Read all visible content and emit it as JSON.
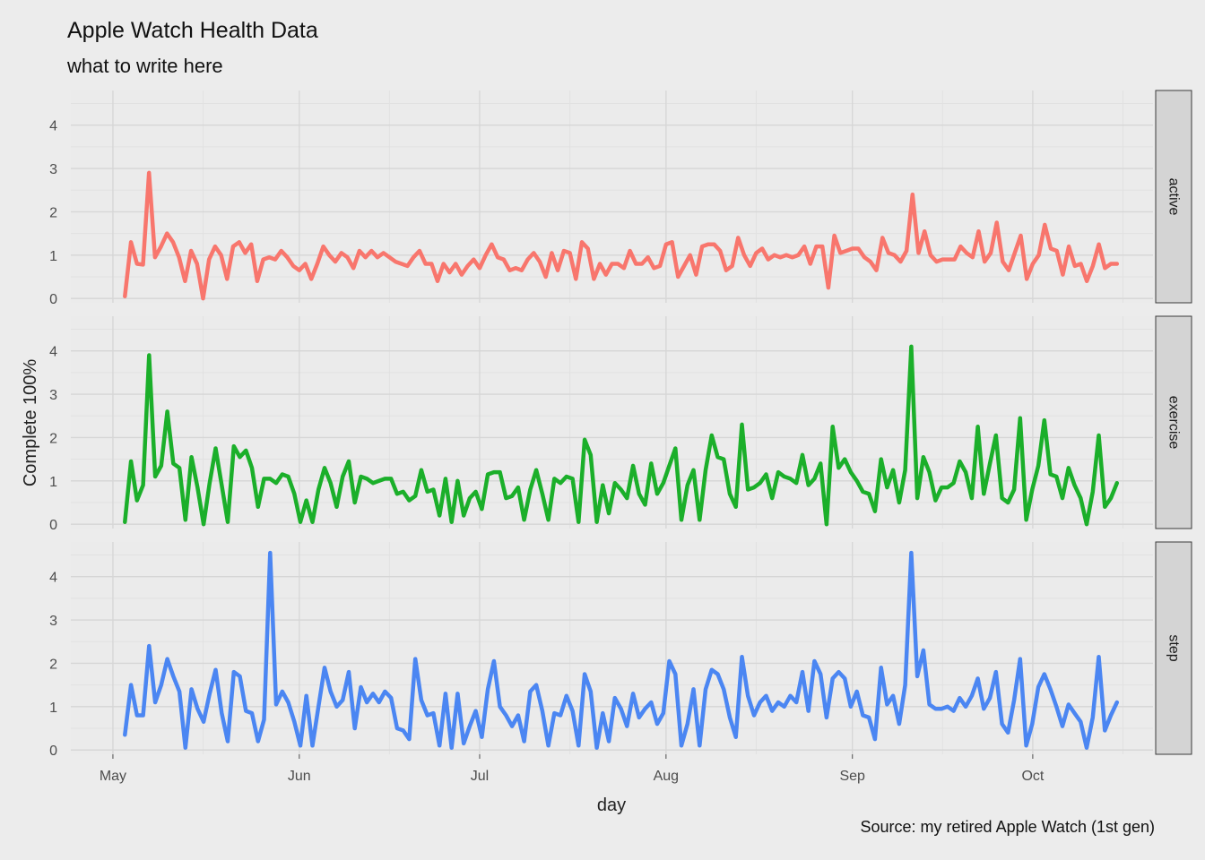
{
  "chart_data": {
    "type": "line",
    "title": "Apple Watch Health Data",
    "subtitle": "what to write here",
    "caption": "Source: my retired Apple Watch (1st gen)",
    "xlabel": "day",
    "ylabel": "Complete 100%",
    "x_ticks": [
      {
        "date": "2016-05-01",
        "label": "May"
      },
      {
        "date": "2016-06-01",
        "label": "Jun"
      },
      {
        "date": "2016-07-01",
        "label": "Jul"
      },
      {
        "date": "2016-08-01",
        "label": "Aug"
      },
      {
        "date": "2016-09-01",
        "label": "Sep"
      },
      {
        "date": "2016-10-01",
        "label": "Oct"
      }
    ],
    "xlim": [
      "2016-04-24",
      "2016-10-21"
    ],
    "ylim": [
      -0.1,
      4.8
    ],
    "y_ticks": [
      0,
      1,
      2,
      3,
      4
    ],
    "x_start": "2016-05-03",
    "x_end": "2016-10-15",
    "grid": true,
    "legend": "none",
    "series": [
      {
        "name": "active",
        "color": "#F8766D",
        "values": [
          0.05,
          1.3,
          0.8,
          0.78,
          2.9,
          0.95,
          1.2,
          1.5,
          1.3,
          0.95,
          0.4,
          1.1,
          0.8,
          0.0,
          0.9,
          1.2,
          1.0,
          0.45,
          1.2,
          1.3,
          1.05,
          1.25,
          0.4,
          0.9,
          0.95,
          0.9,
          1.1,
          0.95,
          0.75,
          0.65,
          0.8,
          0.45,
          0.8,
          1.2,
          1.0,
          0.85,
          1.05,
          0.95,
          0.7,
          1.1,
          0.95,
          1.1,
          0.95,
          1.05,
          0.95,
          0.85,
          0.8,
          0.75,
          0.95,
          1.1,
          0.8,
          0.8,
          0.4,
          0.8,
          0.6,
          0.8,
          0.55,
          0.75,
          0.9,
          0.7,
          1.0,
          1.25,
          0.95,
          0.9,
          0.65,
          0.7,
          0.65,
          0.9,
          1.05,
          0.85,
          0.5,
          1.05,
          0.65,
          1.1,
          1.05,
          0.45,
          1.3,
          1.15,
          0.45,
          0.8,
          0.55,
          0.8,
          0.8,
          0.7,
          1.1,
          0.8,
          0.8,
          0.95,
          0.7,
          0.75,
          1.25,
          1.3,
          0.5,
          0.75,
          1.0,
          0.55,
          1.2,
          1.25,
          1.25,
          1.1,
          0.65,
          0.75,
          1.4,
          1.0,
          0.75,
          1.05,
          1.15,
          0.9,
          1.0,
          0.95,
          1.0,
          0.95,
          1.0,
          1.2,
          0.8,
          1.2,
          1.2,
          0.25,
          1.45,
          1.05,
          1.1,
          1.15,
          1.15,
          0.95,
          0.85,
          0.65,
          1.4,
          1.05,
          1.0,
          0.85,
          1.1,
          2.4,
          1.05,
          1.55,
          1.0,
          0.85,
          0.9,
          0.9,
          0.9,
          1.2,
          1.05,
          0.95,
          1.55,
          0.85,
          1.05,
          1.75,
          0.85,
          0.65,
          1.05,
          1.45,
          0.45,
          0.8,
          1.0,
          1.7,
          1.15,
          1.1,
          0.55,
          1.2,
          0.75,
          0.8,
          0.4,
          0.75,
          1.25,
          0.7,
          0.8,
          0.8
        ]
      },
      {
        "name": "exercise",
        "color": "#1BAF2A",
        "values": [
          0.05,
          1.45,
          0.55,
          0.9,
          3.9,
          1.1,
          1.35,
          2.6,
          1.4,
          1.3,
          0.1,
          1.55,
          0.85,
          0.0,
          0.95,
          1.75,
          0.9,
          0.05,
          1.8,
          1.55,
          1.7,
          1.3,
          0.4,
          1.05,
          1.05,
          0.95,
          1.15,
          1.1,
          0.7,
          0.05,
          0.55,
          0.05,
          0.8,
          1.3,
          0.95,
          0.4,
          1.1,
          1.45,
          0.5,
          1.1,
          1.05,
          0.95,
          1.0,
          1.05,
          1.05,
          0.7,
          0.75,
          0.55,
          0.65,
          1.25,
          0.75,
          0.8,
          0.2,
          1.05,
          0.05,
          1.0,
          0.2,
          0.6,
          0.75,
          0.35,
          1.15,
          1.2,
          1.2,
          0.6,
          0.65,
          0.85,
          0.1,
          0.8,
          1.25,
          0.7,
          0.1,
          1.05,
          0.95,
          1.1,
          1.05,
          0.05,
          1.95,
          1.6,
          0.05,
          0.9,
          0.25,
          0.95,
          0.8,
          0.6,
          1.35,
          0.7,
          0.45,
          1.4,
          0.7,
          0.95,
          1.35,
          1.75,
          0.1,
          0.9,
          1.25,
          0.1,
          1.25,
          2.05,
          1.55,
          1.5,
          0.7,
          0.4,
          2.3,
          0.8,
          0.85,
          0.95,
          1.15,
          0.6,
          1.2,
          1.1,
          1.05,
          0.95,
          1.6,
          0.9,
          1.05,
          1.4,
          0.0,
          2.25,
          1.3,
          1.5,
          1.2,
          1.0,
          0.75,
          0.7,
          0.3,
          1.5,
          0.85,
          1.25,
          0.5,
          1.25,
          4.1,
          0.6,
          1.55,
          1.2,
          0.55,
          0.85,
          0.85,
          0.95,
          1.45,
          1.2,
          0.6,
          2.25,
          0.7,
          1.4,
          2.05,
          0.6,
          0.5,
          0.8,
          2.45,
          0.1,
          0.8,
          1.35,
          2.4,
          1.15,
          1.1,
          0.6,
          1.3,
          0.9,
          0.6,
          0.0,
          0.75,
          2.05,
          0.4,
          0.6,
          0.95
        ]
      },
      {
        "name": "step",
        "color": "#4B86F2",
        "values": [
          0.35,
          1.5,
          0.8,
          0.8,
          2.4,
          1.1,
          1.5,
          2.1,
          1.7,
          1.35,
          0.05,
          1.4,
          0.95,
          0.65,
          1.3,
          1.85,
          0.85,
          0.2,
          1.8,
          1.7,
          0.9,
          0.85,
          0.2,
          0.7,
          4.55,
          1.05,
          1.35,
          1.1,
          0.65,
          0.1,
          1.25,
          0.1,
          1.0,
          1.9,
          1.35,
          1.0,
          1.15,
          1.8,
          0.5,
          1.45,
          1.1,
          1.3,
          1.1,
          1.35,
          1.2,
          0.5,
          0.45,
          0.25,
          2.1,
          1.15,
          0.8,
          0.85,
          0.1,
          1.3,
          0.05,
          1.3,
          0.15,
          0.55,
          0.9,
          0.3,
          1.4,
          2.05,
          1.0,
          0.8,
          0.55,
          0.8,
          0.2,
          1.35,
          1.5,
          0.9,
          0.1,
          0.85,
          0.8,
          1.25,
          0.9,
          0.1,
          1.75,
          1.35,
          0.05,
          0.85,
          0.2,
          1.2,
          0.95,
          0.55,
          1.3,
          0.75,
          0.95,
          1.1,
          0.6,
          0.85,
          2.05,
          1.75,
          0.1,
          0.6,
          1.4,
          0.1,
          1.4,
          1.85,
          1.75,
          1.4,
          0.75,
          0.3,
          2.15,
          1.25,
          0.8,
          1.1,
          1.25,
          0.9,
          1.1,
          1.0,
          1.25,
          1.1,
          1.8,
          0.9,
          2.05,
          1.75,
          0.75,
          1.65,
          1.8,
          1.65,
          1.0,
          1.35,
          0.8,
          0.75,
          0.25,
          1.9,
          1.05,
          1.25,
          0.6,
          1.5,
          4.55,
          1.7,
          2.3,
          1.05,
          0.95,
          0.95,
          1.0,
          0.9,
          1.2,
          1.0,
          1.25,
          1.65,
          0.95,
          1.2,
          1.8,
          0.6,
          0.4,
          1.15,
          2.1,
          0.1,
          0.6,
          1.45,
          1.75,
          1.4,
          1.0,
          0.55,
          1.05,
          0.85,
          0.65,
          0.05,
          0.75,
          2.15,
          0.45,
          0.8,
          1.1
        ]
      }
    ]
  }
}
